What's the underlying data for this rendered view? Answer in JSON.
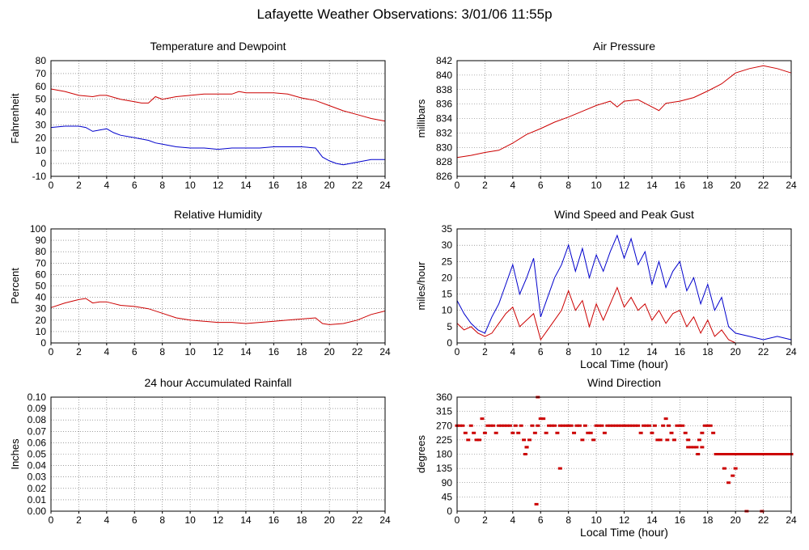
{
  "page": {
    "title": "Lafayette Weather Observations: 3/01/06 11:55p"
  },
  "colors": {
    "primary": "#cc0000",
    "secondary": "#0000cc",
    "grid": "#666666"
  },
  "chart_data": [
    {
      "id": "temp",
      "type": "line",
      "title": "Temperature and Dewpoint",
      "xlabel": "",
      "ylabel": "Fahrenheit",
      "xlim": [
        0,
        24
      ],
      "ylim": [
        -10,
        80
      ],
      "xticks": [
        0,
        2,
        4,
        6,
        8,
        10,
        12,
        14,
        16,
        18,
        20,
        22,
        24
      ],
      "yticks": [
        -10,
        0,
        10,
        20,
        30,
        40,
        50,
        60,
        70,
        80
      ],
      "grid": true,
      "series": [
        {
          "color": "#cc0000",
          "x": [
            0,
            1,
            2,
            3,
            3.5,
            4,
            5,
            5.5,
            6,
            6.5,
            7,
            7.5,
            8,
            9,
            10,
            11,
            12,
            13,
            13.5,
            14,
            15,
            16,
            17,
            18,
            19,
            20,
            21,
            22,
            23,
            24
          ],
          "y": [
            58,
            56,
            53,
            52,
            53,
            53,
            50,
            49,
            48,
            47,
            47,
            52,
            50,
            52,
            53,
            54,
            54,
            54,
            56,
            55,
            55,
            55,
            54,
            51,
            49,
            45,
            41,
            38,
            35,
            33
          ]
        },
        {
          "color": "#0000cc",
          "x": [
            0,
            1,
            2,
            2.5,
            3,
            3.5,
            4,
            4.5,
            5,
            6,
            7,
            7.5,
            8,
            9,
            10,
            11,
            12,
            13,
            14,
            15,
            16,
            17,
            18,
            19,
            19.5,
            20,
            20.5,
            21,
            21.5,
            22,
            23,
            24
          ],
          "y": [
            28,
            29,
            29,
            28,
            25,
            26,
            27,
            24,
            22,
            20,
            18,
            16,
            15,
            13,
            12,
            12,
            11,
            12,
            12,
            12,
            13,
            13,
            13,
            12,
            5,
            2,
            0,
            -1,
            0,
            1,
            3,
            3
          ]
        }
      ]
    },
    {
      "id": "pressure",
      "type": "line",
      "title": "Air Pressure",
      "xlabel": "",
      "ylabel": "millibars",
      "xlim": [
        0,
        24
      ],
      "ylim": [
        826,
        842
      ],
      "xticks": [
        0,
        2,
        4,
        6,
        8,
        10,
        12,
        14,
        16,
        18,
        20,
        22,
        24
      ],
      "yticks": [
        826,
        828,
        830,
        832,
        834,
        836,
        838,
        840,
        842
      ],
      "grid": true,
      "series": [
        {
          "color": "#cc0000",
          "x": [
            0,
            1,
            2,
            3,
            4,
            5,
            6,
            7,
            8,
            9,
            10,
            11,
            11.5,
            12,
            13,
            14,
            14.5,
            15,
            16,
            17,
            18,
            19,
            20,
            21,
            22,
            23,
            24
          ],
          "y": [
            828.6,
            828.9,
            829.3,
            829.6,
            830.6,
            831.8,
            832.6,
            833.5,
            834.2,
            835.0,
            835.8,
            836.4,
            835.6,
            836.4,
            836.6,
            835.6,
            835.1,
            836.1,
            836.4,
            836.9,
            837.8,
            838.8,
            840.3,
            840.9,
            841.3,
            840.9,
            840.3
          ]
        }
      ]
    },
    {
      "id": "humidity",
      "type": "line",
      "title": "Relative Humidity",
      "xlabel": "",
      "ylabel": "Percent",
      "xlim": [
        0,
        24
      ],
      "ylim": [
        0,
        100
      ],
      "xticks": [
        0,
        2,
        4,
        6,
        8,
        10,
        12,
        14,
        16,
        18,
        20,
        22,
        24
      ],
      "yticks": [
        0,
        10,
        20,
        30,
        40,
        50,
        60,
        70,
        80,
        90,
        100
      ],
      "grid": true,
      "series": [
        {
          "color": "#cc0000",
          "x": [
            0,
            1,
            2,
            2.5,
            3,
            3.5,
            4,
            5,
            6,
            7,
            8,
            9,
            10,
            11,
            12,
            13,
            14,
            15,
            16,
            17,
            18,
            19,
            19.5,
            20,
            21,
            22,
            23,
            24
          ],
          "y": [
            31,
            35,
            38,
            39,
            35,
            36,
            36,
            33,
            32,
            30,
            26,
            22,
            20,
            19,
            18,
            18,
            17,
            18,
            19,
            20,
            21,
            22,
            17,
            16,
            17,
            20,
            25,
            28
          ]
        }
      ]
    },
    {
      "id": "wind-speed",
      "type": "line",
      "title": "Wind Speed and Peak Gust",
      "xlabel": "Local Time (hour)",
      "ylabel": "miles/hour",
      "xlim": [
        0,
        24
      ],
      "ylim": [
        0,
        35
      ],
      "xticks": [
        0,
        2,
        4,
        6,
        8,
        10,
        12,
        14,
        16,
        18,
        20,
        22,
        24
      ],
      "yticks": [
        0,
        5,
        10,
        15,
        20,
        25,
        30,
        35
      ],
      "grid": true,
      "series": [
        {
          "color": "#0000cc",
          "x": [
            0,
            0.5,
            1,
            1.5,
            2,
            2.5,
            3,
            3.5,
            4,
            4.5,
            5,
            5.5,
            6,
            6.5,
            7,
            7.5,
            8,
            8.5,
            9,
            9.5,
            10,
            10.5,
            11,
            11.5,
            12,
            12.5,
            13,
            13.5,
            14,
            14.5,
            15,
            15.5,
            16,
            16.5,
            17,
            17.5,
            18,
            18.5,
            19,
            19.5,
            20,
            21,
            22,
            23,
            24
          ],
          "y": [
            13,
            9,
            6,
            4,
            3,
            8,
            12,
            18,
            24,
            15,
            20,
            26,
            8,
            14,
            20,
            24,
            30,
            22,
            29,
            20,
            27,
            22,
            28,
            33,
            26,
            32,
            24,
            28,
            18,
            25,
            17,
            22,
            25,
            16,
            20,
            12,
            18,
            10,
            14,
            5,
            3,
            2,
            1,
            2,
            1
          ]
        },
        {
          "color": "#cc0000",
          "x": [
            0,
            0.5,
            1,
            1.5,
            2,
            2.5,
            3,
            3.5,
            4,
            4.5,
            5,
            5.5,
            6,
            6.5,
            7,
            7.5,
            8,
            8.5,
            9,
            9.5,
            10,
            10.5,
            11,
            11.5,
            12,
            12.5,
            13,
            13.5,
            14,
            14.5,
            15,
            15.5,
            16,
            16.5,
            17,
            17.5,
            18,
            18.5,
            19,
            19.5,
            20,
            21,
            22,
            23,
            24
          ],
          "y": [
            6,
            4,
            5,
            3,
            2,
            3,
            6,
            9,
            11,
            5,
            7,
            9,
            1,
            4,
            7,
            10,
            16,
            10,
            13,
            5,
            12,
            7,
            12,
            17,
            11,
            14,
            10,
            12,
            7,
            10,
            6,
            9,
            10,
            5,
            8,
            3,
            7,
            2,
            4,
            1,
            0,
            0,
            0,
            0,
            0
          ]
        }
      ]
    },
    {
      "id": "rainfall",
      "type": "line",
      "title": "24 hour Accumulated Rainfall",
      "xlabel": "",
      "ylabel": "Inches",
      "xlim": [
        0,
        24
      ],
      "ylim": [
        0,
        0.1
      ],
      "xticks": [
        0,
        2,
        4,
        6,
        8,
        10,
        12,
        14,
        16,
        18,
        20,
        22,
        24
      ],
      "yticks": [
        "0.00",
        "0.01",
        "0.02",
        "0.03",
        "0.04",
        "0.05",
        "0.06",
        "0.07",
        "0.08",
        "0.09",
        "0.10"
      ],
      "grid": true,
      "series": [
        {
          "color": "#cc0000",
          "x": [
            0,
            24
          ],
          "y": [
            0,
            0
          ]
        }
      ]
    },
    {
      "id": "wind-direction",
      "type": "scatter",
      "title": "Wind Direction",
      "xlabel": "Local Time (hour)",
      "ylabel": "degrees",
      "xlim": [
        0,
        24
      ],
      "ylim": [
        0,
        360
      ],
      "xticks": [
        0,
        2,
        4,
        6,
        8,
        10,
        12,
        14,
        16,
        18,
        20,
        22,
        24
      ],
      "yticks": [
        0,
        45,
        90,
        135,
        180,
        225,
        270,
        315,
        360
      ],
      "grid": true,
      "series": [
        {
          "color": "#cc0000",
          "x": [
            0,
            0.2,
            0.4,
            0.6,
            0.8,
            1,
            1.2,
            1.4,
            1.6,
            1.8,
            2,
            2.2,
            2.4,
            2.6,
            2.8,
            3,
            3.2,
            3.4,
            3.6,
            3.8,
            4,
            4.2,
            4.4,
            4.6,
            4.8,
            5,
            5.2,
            5.4,
            5.6,
            5.8,
            6,
            6.2,
            6.4,
            6.6,
            6.8,
            7,
            7.2,
            7.4,
            7.6,
            7.8,
            8,
            8.2,
            8.4,
            8.6,
            8.8,
            9,
            9.2,
            9.4,
            9.6,
            9.8,
            10,
            10.2,
            10.4,
            10.6,
            10.8,
            11,
            11.2,
            11.4,
            11.6,
            11.8,
            12,
            12.2,
            12.4,
            12.6,
            12.8,
            13,
            13.2,
            13.4,
            13.6,
            13.8,
            14,
            14.2,
            14.4,
            14.6,
            14.8,
            15,
            15.2,
            15.4,
            15.6,
            15.8,
            16,
            16.2,
            16.4,
            16.6,
            16.8,
            17,
            17.2,
            17.4,
            17.6,
            17.8,
            18,
            18.2,
            18.4,
            18.6,
            18.8,
            19,
            19.2,
            19.4,
            19.6,
            19.8,
            20,
            20.2,
            20.4,
            20.6,
            20.8,
            21,
            21.2,
            21.4,
            21.6,
            21.8,
            22,
            22.2,
            22.4,
            22.6,
            22.8,
            23,
            23.2,
            23.4,
            23.6,
            23.8,
            24,
            5.7,
            5.8,
            4.9,
            5.0,
            7.4,
            15.1,
            16.6,
            17.3,
            17.6,
            19.2,
            19.5,
            19.8,
            20.0,
            20.8,
            21.9
          ],
          "y": [
            270,
            270,
            270,
            247,
            225,
            270,
            247,
            225,
            225,
            292,
            247,
            270,
            270,
            270,
            247,
            270,
            270,
            270,
            270,
            270,
            247,
            270,
            247,
            270,
            225,
            202,
            225,
            270,
            247,
            270,
            292,
            292,
            247,
            270,
            270,
            270,
            247,
            270,
            270,
            270,
            270,
            270,
            247,
            270,
            270,
            225,
            270,
            247,
            247,
            225,
            270,
            270,
            270,
            247,
            270,
            270,
            270,
            270,
            270,
            270,
            270,
            270,
            270,
            270,
            270,
            270,
            247,
            270,
            270,
            270,
            247,
            270,
            225,
            225,
            270,
            292,
            270,
            247,
            225,
            270,
            270,
            270,
            247,
            225,
            202,
            202,
            202,
            225,
            247,
            270,
            270,
            270,
            247,
            180,
            180,
            180,
            180,
            180,
            180,
            180,
            180,
            180,
            180,
            180,
            180,
            180,
            180,
            180,
            180,
            180,
            180,
            180,
            180,
            180,
            180,
            180,
            180,
            180,
            180,
            180,
            180,
            22,
            360,
            180,
            202,
            135,
            225,
            202,
            180,
            202,
            135,
            90,
            112,
            135,
            0,
            0
          ]
        }
      ]
    }
  ]
}
